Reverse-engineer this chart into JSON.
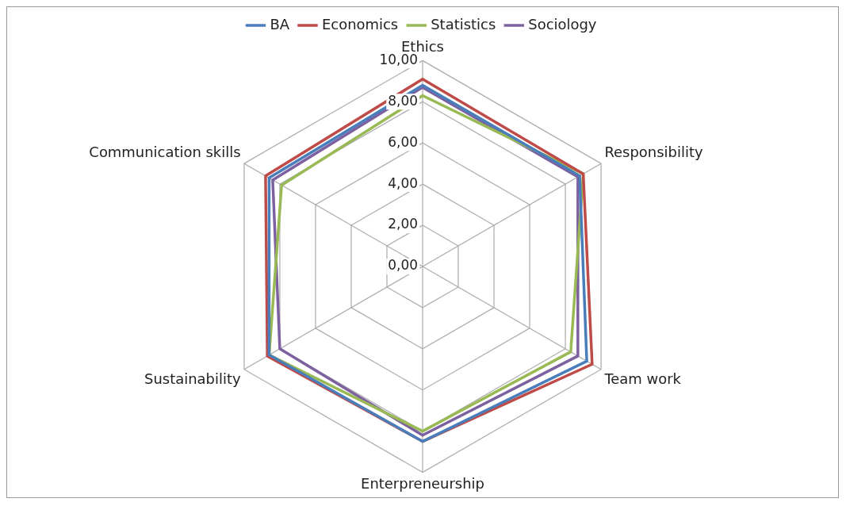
{
  "chart_data": {
    "type": "radar",
    "categories": [
      "Ethics",
      "Responsibility",
      "Team work",
      "Enterpreneurship",
      "Sustainability",
      "Communication skills"
    ],
    "series": [
      {
        "name": "BA",
        "color": "#4a7ebb",
        "values": [
          8.8,
          8.8,
          9.2,
          8.5,
          8.6,
          8.6
        ]
      },
      {
        "name": "Economics",
        "color": "#be4b48",
        "values": [
          9.1,
          9.0,
          9.5,
          8.5,
          8.7,
          8.8
        ]
      },
      {
        "name": "Statistics",
        "color": "#98b954",
        "values": [
          8.3,
          9.0,
          8.3,
          8.0,
          8.6,
          7.9
        ]
      },
      {
        "name": "Sociology",
        "color": "#7d60a0",
        "values": [
          8.7,
          8.7,
          8.7,
          8.2,
          8.0,
          8.4
        ]
      }
    ],
    "ylim": [
      0,
      10
    ],
    "yticks": [
      {
        "value": 0,
        "label": "0,00"
      },
      {
        "value": 2,
        "label": "2,00"
      },
      {
        "value": 4,
        "label": "4,00"
      },
      {
        "value": 6,
        "label": "6,00"
      },
      {
        "value": 8,
        "label": "8,00"
      },
      {
        "value": 10,
        "label": "10,00"
      }
    ],
    "grid": true,
    "legend": "top",
    "marker": "none",
    "line_style": "solid"
  }
}
